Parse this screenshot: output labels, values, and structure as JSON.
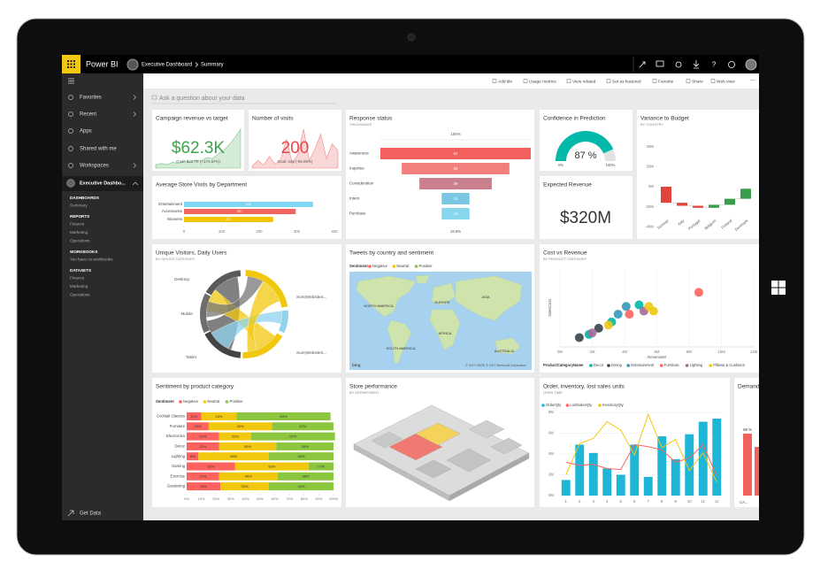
{
  "topbar": {
    "brand": "Power BI",
    "workspace": "Executive Dashboard",
    "page": "Summary"
  },
  "nav": {
    "items": [
      "Favorites",
      "Recent",
      "Apps",
      "Shared with me",
      "Workspaces"
    ],
    "workspace": "Executive Dashbo...",
    "sections": [
      {
        "title": "DASHBOARDS",
        "items": [
          "Summary"
        ]
      },
      {
        "title": "REPORTS",
        "items": [
          "Finance",
          "Marketing",
          "Operations"
        ]
      },
      {
        "title": "WORKBOOKS",
        "items": [
          "You have no workbooks"
        ]
      },
      {
        "title": "DATASETS",
        "items": [
          "Finance",
          "Marketing",
          "Operations"
        ]
      }
    ],
    "footer": "Get Data"
  },
  "toolbar": [
    "Add tile",
    "Usage metrics",
    "View related",
    "Set as featured",
    "Favorite",
    "Share",
    "Web view"
  ],
  "qna": "Ask a question about your data",
  "tiles": {
    "campaign": {
      "title": "Campaign revenue vs target",
      "value": "$62.3K",
      "goal": "Goal: $22.7K (+174.67%)",
      "color": "#3aa54a",
      "trend": [
        3,
        4,
        3,
        5,
        4,
        6,
        5,
        7,
        6,
        9,
        8,
        12,
        15,
        20,
        26,
        33
      ]
    },
    "visits": {
      "title": "Number of visits",
      "value": "200",
      "goal": "Goal: 445 (-55.06%)",
      "color": "#e8474a",
      "trend": [
        2,
        8,
        3,
        12,
        4,
        9,
        30,
        5,
        14,
        40,
        8,
        20,
        35,
        10,
        25,
        18
      ]
    },
    "response": {
      "title": "Response status",
      "subtitle": "THOUSANDS",
      "top": "100%",
      "bottom": "18.8%",
      "categories": [
        "Awareness",
        "Inquiries",
        "Consideration",
        "Intent",
        "Purchase"
      ],
      "values": [
        81,
        58,
        39,
        15,
        15
      ],
      "colors": [
        "#f25f5c",
        "#f27f7b",
        "#c9808c",
        "#79c7e3",
        "#86d6ee"
      ]
    },
    "confidence": {
      "title": "Confidence in Prediction",
      "value": 87,
      "label": "87 %",
      "min": {
        "value": 0,
        "label": "0%"
      },
      "max": {
        "value": 100,
        "label": "100%"
      },
      "color": "#01b8aa"
    },
    "variance": {
      "title": "Variance to Budget",
      "subtitle": "BY COUNTRY",
      "categories": [
        "Norway",
        "Italy",
        "Portugal",
        "Belgium",
        "Finland",
        "Denmark"
      ],
      "values": [
        -16,
        -3,
        -2,
        3,
        6,
        10
      ],
      "colors": {
        "decrease": "#e0443a",
        "increase": "#3a9d4b"
      },
      "ylim": [
        -45,
        45
      ],
      "yticks": [
        {
          "value": 40,
          "label": "40M"
        },
        {
          "value": 20,
          "label": "20M"
        },
        {
          "value": 0,
          "label": "0M"
        },
        {
          "value": -20,
          "label": "-20M"
        },
        {
          "value": -40,
          "label": "-40M"
        }
      ]
    },
    "store_visits": {
      "title": "Average Store Visits by Department",
      "categories": [
        "Entertainment",
        "Accessories",
        "Womens"
      ],
      "values": [
        343,
        297,
        237
      ],
      "colors": [
        "#7fd6f0",
        "#f2645f",
        "#f5c400"
      ],
      "xlim": [
        0,
        400
      ],
      "xticks": [
        0,
        100,
        200,
        300,
        400
      ]
    },
    "expected": {
      "title": "Expected Revenue",
      "value": "$320M"
    },
    "visitors": {
      "title": "Unique Visitors, Daily Users",
      "subtitle": "BY DEVICE CATEGORY",
      "labels": [
        "Desktop",
        "Mobile",
        "Tablet",
        "Sum(WebsiteS...",
        "Sum(WebsiteS..."
      ]
    },
    "tweets": {
      "title": "Tweets by country and sentiment",
      "legend_title": "Sentiment",
      "legend": [
        {
          "name": "Negative",
          "color": "#fd625e"
        },
        {
          "name": "Neutral",
          "color": "#f2c80f"
        },
        {
          "name": "Positive",
          "color": "#8cc63e"
        }
      ],
      "regions": [
        "NORTH AMERICA",
        "EUROPE",
        "ASIA",
        "AFRICA",
        "SOUTH AMERICA",
        "AUSTRALIA"
      ],
      "credit": "© 2017 HERE © 2017 Microsoft Corporation",
      "logo": "bing"
    },
    "cost": {
      "title": "Cost vs Revenue",
      "subtitle": "BY PRODUCT CATEGORY",
      "x_label": "RevenueM",
      "y_label": "SalesCost",
      "legend_title": "ProductCategoryName",
      "xlim": [
        0,
        12
      ],
      "ylim": [
        0,
        5
      ],
      "xticks": [
        {
          "value": 0,
          "label": "0M"
        },
        {
          "value": 2,
          "label": "2M"
        },
        {
          "value": 4,
          "label": "4M"
        },
        {
          "value": 6,
          "label": "6M"
        },
        {
          "value": 8,
          "label": "8M"
        },
        {
          "value": 10,
          "label": "10M"
        },
        {
          "value": 12,
          "label": "12M"
        }
      ],
      "series": [
        {
          "name": "Decor",
          "color": "#01b8aa",
          "x": [
            4.9,
            3.2,
            1.8
          ],
          "y": [
            2.7,
            1.6,
            0.8
          ]
        },
        {
          "name": "Dining",
          "color": "#374649",
          "x": [
            1.2,
            2.4
          ],
          "y": [
            0.6,
            1.2
          ]
        },
        {
          "name": "Entertainment",
          "color": "#3599b8",
          "x": [
            4.1,
            3.6
          ],
          "y": [
            2.6,
            2.1
          ]
        },
        {
          "name": "Furniture",
          "color": "#fd625e",
          "x": [
            8.6,
            4.3
          ],
          "y": [
            3.5,
            2.1
          ]
        },
        {
          "name": "Lighting",
          "color": "#a66999",
          "x": [
            5.2,
            2.0
          ],
          "y": [
            2.3,
            0.9
          ]
        },
        {
          "name": "Pillows & Cushions",
          "color": "#f2c80f",
          "x": [
            5.8,
            5.5,
            3.0
          ],
          "y": [
            2.3,
            2.6,
            1.4
          ]
        }
      ]
    },
    "sentiment": {
      "title": "Sentiment by product category",
      "legend_title": "Sentiment",
      "categories": [
        "Cocktail Glasses",
        "Furniture",
        "Electronics",
        "Décor",
        "Lighting",
        "Gaming",
        "Exercise",
        "Gardening"
      ],
      "series": [
        {
          "name": "Negative",
          "color": "#fd625e",
          "values": [
            10,
            15,
            22,
            22,
            8,
            33,
            22,
            23
          ],
          "value_labels": [
            "10%",
            "15%",
            "22%",
            "22%",
            "8%",
            "33%",
            "22%",
            "23%"
          ]
        },
        {
          "name": "Neutral",
          "color": "#f2c80f",
          "values": [
            24,
            43,
            22,
            39,
            48,
            50,
            40,
            33
          ],
          "value_labels": [
            "24%",
            "43%",
            "22%",
            "39%",
            "48%",
            "50%",
            "40%",
            "33%"
          ]
        },
        {
          "name": "Positive",
          "color": "#8cc63e",
          "values": [
            64,
            42,
            57,
            39,
            44,
            17,
            38,
            44
          ],
          "value_labels": [
            "64%",
            "42%",
            "57%",
            "39%",
            "44%",
            "17%",
            "38%",
            "44%"
          ]
        }
      ],
      "xlim": [
        0,
        100
      ],
      "xticks": [
        {
          "value": 0,
          "label": "0%"
        },
        {
          "value": 10,
          "label": "10%"
        },
        {
          "value": 20,
          "label": "20%"
        },
        {
          "value": 30,
          "label": "30%"
        },
        {
          "value": 40,
          "label": "40%"
        },
        {
          "value": 50,
          "label": "50%"
        },
        {
          "value": 60,
          "label": "60%"
        },
        {
          "value": 70,
          "label": "70%"
        },
        {
          "value": 80,
          "label": "80%"
        },
        {
          "value": 90,
          "label": "90%"
        },
        {
          "value": 100,
          "label": "100%"
        }
      ]
    },
    "store": {
      "title": "Store performance",
      "subtitle": "BY DEPARTMENT"
    },
    "orders": {
      "title": "Order, inventory, lost sales units",
      "subtitle": "OVER TIME",
      "x": [
        1,
        2,
        3,
        4,
        5,
        6,
        7,
        8,
        9,
        10,
        11,
        12
      ],
      "xlim": [
        0.5,
        12.5
      ],
      "ylim": [
        0,
        8
      ],
      "yticks": [
        {
          "value": 0,
          "label": "0M"
        },
        {
          "value": 2,
          "label": "2M"
        },
        {
          "value": 4,
          "label": "4M"
        },
        {
          "value": 6,
          "label": "6M"
        },
        {
          "value": 8,
          "label": "8M"
        }
      ],
      "series": [
        {
          "name": "OrderQty",
          "type": "bar",
          "color": "#1fb5d6",
          "values": [
            1.5,
            4.9,
            4.1,
            2.6,
            2.0,
            4.9,
            1.8,
            5.7,
            3.5,
            5.9,
            7.1,
            7.4
          ]
        },
        {
          "name": "LostSalesQty",
          "type": "line",
          "color": "#fd625e",
          "values": [
            3.2,
            2.9,
            3.0,
            2.6,
            2.5,
            4.9,
            4.7,
            4.4,
            3.2,
            3.6,
            4.9,
            1.9
          ]
        },
        {
          "name": "InventoryQty",
          "type": "line",
          "color": "#f2c80f",
          "values": [
            2.0,
            5.0,
            5.5,
            7.1,
            6.3,
            3.9,
            7.8,
            4.6,
            5.4,
            2.4,
            4.1,
            1.3
          ]
        }
      ]
    },
    "demand": {
      "title": "Demand",
      "value_label": "68 %",
      "category": "CA...",
      "color": "#f0625e"
    }
  }
}
